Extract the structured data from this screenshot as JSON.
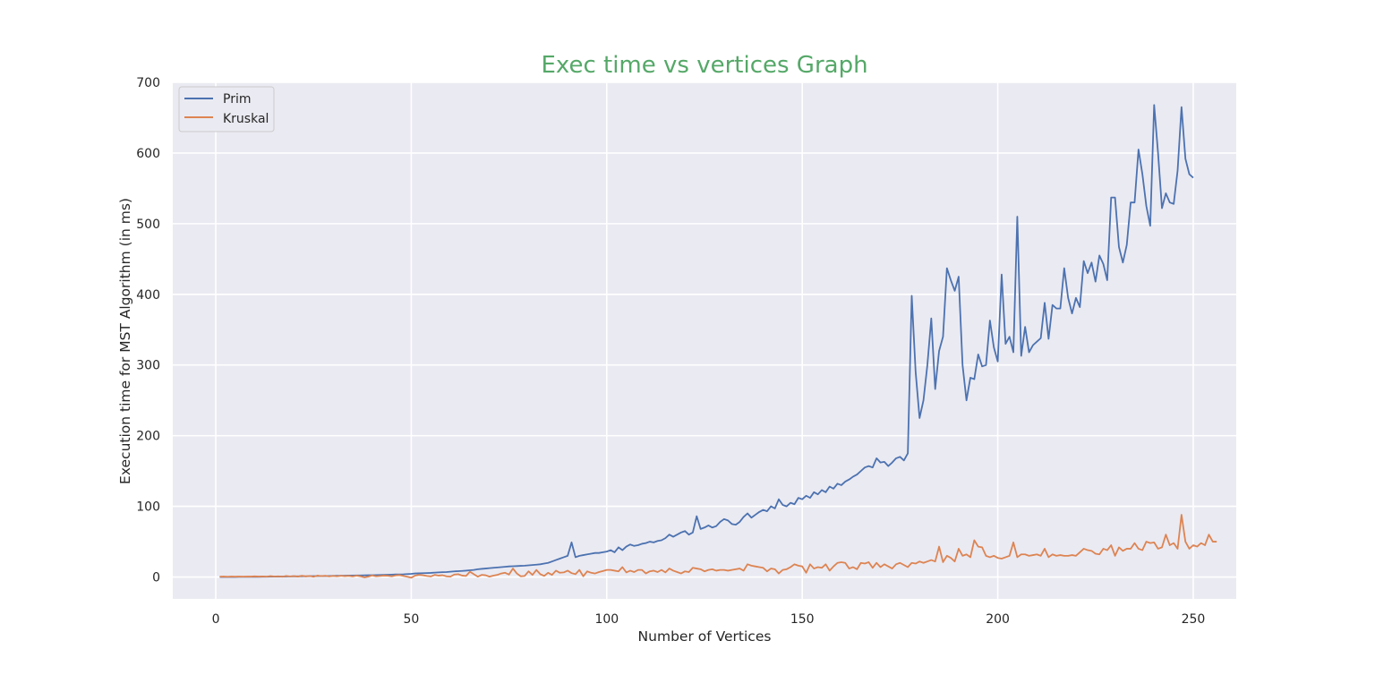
{
  "chart_data": {
    "type": "line",
    "title": "Exec time vs vertices Graph",
    "xlabel": "Number of Vertices",
    "ylabel": "Execution time for MST Algorithm (in ms)",
    "xlim": [
      -11,
      261
    ],
    "ylim": [
      -31,
      700
    ],
    "xticks": [
      0,
      50,
      100,
      150,
      200,
      250
    ],
    "yticks": [
      0,
      100,
      200,
      300,
      400,
      500,
      600,
      700
    ],
    "grid": true,
    "legend_position": "top-left",
    "colors": {
      "background": "#eaeaf2",
      "grid": "#ffffff",
      "title": "#55a868",
      "prim": "#4c72b0",
      "kruskal": "#dd8452"
    },
    "x_start": 1,
    "series": [
      {
        "name": "Prim",
        "values": [
          0.1,
          0.1,
          0.1,
          0.1,
          0.1,
          0.2,
          0.2,
          0.2,
          0.2,
          0.3,
          0.3,
          0.4,
          0.4,
          0.5,
          0.5,
          0.6,
          0.6,
          0.7,
          0.8,
          0.9,
          0.9,
          1.0,
          1.0,
          1.1,
          1.2,
          1.3,
          1.3,
          1.4,
          1.5,
          1.6,
          1.7,
          1.8,
          1.9,
          2.0,
          2.1,
          2.2,
          2.3,
          2.4,
          2.5,
          2.6,
          2.7,
          2.8,
          3.0,
          3.2,
          3.4,
          3.6,
          3.7,
          3.8,
          4.2,
          4.5,
          5.0,
          5.2,
          5.4,
          5.6,
          5.8,
          6.2,
          6.5,
          6.8,
          7.0,
          7.5,
          8.0,
          8.3,
          8.6,
          9.0,
          9.5,
          10.0,
          11.0,
          11.5,
          12.0,
          12.5,
          13.0,
          13.5,
          14.0,
          14.5,
          15.0,
          15.2,
          15.5,
          15.8,
          16.0,
          16.5,
          17.0,
          17.5,
          18.0,
          19.0,
          20.0,
          22.0,
          24.0,
          26.0,
          28.0,
          30.0,
          49.0,
          28.0,
          30.0,
          31.0,
          32.0,
          33.0,
          34.0,
          34.0,
          35.0,
          36.0,
          38.0,
          35.0,
          42.0,
          38.0,
          43.0,
          46.0,
          44.0,
          45.0,
          47.0,
          48.0,
          50.0,
          49.0,
          51.0,
          52.0,
          55.0,
          60.0,
          57.0,
          60.0,
          63.0,
          65.0,
          60.0,
          63.0,
          86.0,
          68.0,
          70.0,
          73.0,
          70.0,
          72.0,
          78.0,
          82.0,
          80.0,
          75.0,
          74.0,
          78.0,
          85.0,
          90.0,
          84.0,
          88.0,
          92.0,
          95.0,
          93.0,
          100.0,
          97.0,
          110.0,
          102.0,
          100.0,
          105.0,
          103.0,
          112.0,
          110.0,
          115.0,
          112.0,
          120.0,
          117.0,
          123.0,
          120.0,
          128.0,
          125.0,
          132.0,
          130.0,
          135.0,
          138.0,
          142.0,
          145.0,
          150.0,
          155.0,
          157.0,
          155.0,
          168.0,
          162.0,
          163.0,
          157.0,
          162.0,
          168.0,
          170.0,
          165.0,
          175.0,
          398.0,
          290.0,
          225.0,
          250.0,
          300.0,
          366.0,
          266.0,
          320.0,
          340.0,
          437.0,
          420.0,
          405.0,
          425.0,
          300.0,
          250.0,
          282.0,
          280.0,
          315.0,
          298.0,
          300.0,
          363.0,
          325.0,
          305.0,
          428.0,
          330.0,
          340.0,
          318.0,
          510.0,
          313.0,
          354.0,
          318.0,
          328.0,
          333.0,
          338.0,
          388.0,
          337.0,
          385.0,
          380.0,
          380.0,
          437.0,
          395.0,
          373.0,
          395.0,
          382.0,
          447.0,
          430.0,
          445.0,
          418.0,
          455.0,
          443.0,
          420.0,
          537.0,
          537.0,
          467.0,
          445.0,
          470.0,
          530.0,
          530.0,
          605.0,
          570.0,
          525.0,
          497.0,
          668.0,
          600.0,
          522.0,
          543.0,
          530.0,
          528.0,
          575.0,
          665.0,
          592.0,
          570.0,
          565.0
        ]
      },
      {
        "name": "Kruskal",
        "values": [
          0.5,
          0.6,
          0.4,
          0.6,
          0.5,
          0.7,
          0.5,
          0.7,
          0.6,
          0.9,
          0.6,
          0.8,
          0.5,
          1.2,
          0.7,
          1.0,
          0.4,
          1.5,
          0.8,
          1.3,
          0.6,
          1.8,
          0.9,
          1.5,
          0.4,
          2.0,
          1.2,
          1.8,
          0.8,
          1.6,
          1.0,
          1.8,
          1.2,
          1.6,
          0.8,
          2.0,
          1.0,
          -0.5,
          0.5,
          2.2,
          1.0,
          1.5,
          2.0,
          1.8,
          1.0,
          2.2,
          2.8,
          1.5,
          0.3,
          -1.0,
          2.0,
          3.0,
          2.5,
          1.5,
          0.8,
          3.0,
          2.0,
          2.5,
          1.0,
          0.5,
          3.5,
          4.0,
          2.0,
          1.5,
          7.5,
          4.0,
          0.5,
          3.0,
          2.5,
          0.5,
          2.0,
          3.0,
          5.0,
          6.0,
          3.5,
          12.0,
          5.0,
          1.0,
          1.5,
          8.0,
          3.0,
          10.0,
          4.0,
          1.5,
          6.0,
          3.0,
          9.0,
          6.0,
          6.5,
          9.0,
          5.5,
          4.0,
          10.0,
          1.0,
          8.0,
          6.0,
          5.0,
          7.0,
          8.5,
          10.0,
          10.0,
          9.0,
          8.0,
          14.0,
          6.5,
          9.0,
          7.0,
          10.0,
          10.0,
          5.0,
          8.0,
          9.0,
          7.0,
          10.0,
          6.5,
          12.0,
          9.0,
          7.0,
          5.0,
          8.0,
          7.0,
          13.0,
          12.0,
          11.0,
          8.0,
          10.0,
          11.0,
          9.0,
          10.0,
          10.0,
          9.0,
          10.0,
          11.0,
          12.0,
          9.0,
          18.0,
          16.0,
          15.0,
          14.0,
          13.0,
          8.0,
          12.0,
          11.0,
          5.0,
          10.0,
          11.0,
          14.0,
          18.0,
          16.0,
          15.0,
          6.0,
          18.0,
          12.0,
          14.0,
          13.0,
          18.0,
          9.0,
          15.0,
          20.0,
          21.0,
          20.0,
          12.0,
          14.0,
          11.0,
          20.0,
          19.0,
          21.0,
          13.0,
          20.0,
          14.0,
          18.0,
          15.0,
          12.0,
          18.0,
          20.0,
          17.0,
          14.0,
          20.0,
          19.0,
          22.0,
          20.0,
          22.0,
          24.0,
          22.0,
          43.0,
          21.0,
          30.0,
          27.0,
          22.0,
          40.0,
          30.0,
          32.0,
          28.0,
          52.0,
          43.0,
          42.0,
          30.0,
          28.0,
          30.0,
          27.0,
          26.0,
          28.0,
          30.0,
          49.0,
          28.0,
          32.0,
          32.0,
          30.0,
          31.0,
          32.0,
          30.0,
          40.0,
          28.0,
          32.0,
          30.0,
          31.0,
          30.0,
          30.0,
          31.0,
          30.0,
          35.0,
          40.0,
          38.0,
          37.0,
          33.0,
          32.0,
          40.0,
          38.0,
          45.0,
          30.0,
          42.0,
          37.0,
          40.0,
          40.0,
          48.0,
          40.0,
          38.0,
          50.0,
          48.0,
          49.0,
          40.0,
          42.0,
          60.0,
          45.0,
          48.0,
          40.0,
          88.0,
          50.0,
          40.0,
          45.0,
          43.0,
          48.0,
          45.0,
          60.0,
          50.0,
          50.0
        ]
      }
    ]
  }
}
